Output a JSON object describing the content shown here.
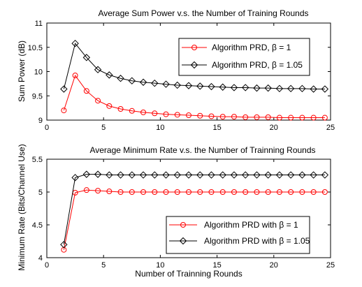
{
  "chart_data": [
    {
      "type": "line",
      "title": "Average Sum Power v.s. the Number of Training Rounds",
      "xlabel": "",
      "ylabel": "Sum Power (dB)",
      "xlim": [
        0,
        25
      ],
      "ylim": [
        9,
        11
      ],
      "xticks": [
        0,
        5,
        10,
        15,
        20,
        25
      ],
      "yticks": [
        9,
        9.5,
        10,
        10.5,
        11
      ],
      "grid": false,
      "legend_position": "top-right",
      "x": [
        1.5,
        2.5,
        3.5,
        4.5,
        5.5,
        6.5,
        7.5,
        8.5,
        9.5,
        10.5,
        11.5,
        12.5,
        13.5,
        14.5,
        15.5,
        16.5,
        17.5,
        18.5,
        19.5,
        20.5,
        21.5,
        22.5,
        23.5,
        24.5
      ],
      "series": [
        {
          "name": "Algorithm PRD, β = 1",
          "color": "#ff0000",
          "marker": "circle",
          "values": [
            9.2,
            9.92,
            9.6,
            9.4,
            9.29,
            9.23,
            9.19,
            9.16,
            9.14,
            9.12,
            9.11,
            9.1,
            9.09,
            9.08,
            9.07,
            9.07,
            9.06,
            9.06,
            9.06,
            9.05,
            9.05,
            9.05,
            9.05,
            9.05
          ]
        },
        {
          "name": "Algorithm PRD, β = 1.05",
          "color": "#000000",
          "marker": "diamond",
          "values": [
            9.64,
            10.58,
            10.29,
            10.04,
            9.93,
            9.86,
            9.81,
            9.78,
            9.76,
            9.74,
            9.72,
            9.71,
            9.7,
            9.69,
            9.68,
            9.67,
            9.67,
            9.66,
            9.66,
            9.65,
            9.65,
            9.65,
            9.64,
            9.64
          ]
        }
      ]
    },
    {
      "type": "line",
      "title": "Average Minimum Rate v.s. the Number of Trainning Rounds",
      "xlabel": "Number of Trainning Rounds",
      "ylabel": "Minimum Rate (Bits/Channel Use)",
      "xlim": [
        0,
        25
      ],
      "ylim": [
        4,
        5.5
      ],
      "xticks": [
        0,
        5,
        10,
        15,
        20,
        25
      ],
      "yticks": [
        4,
        4.5,
        5,
        5.5
      ],
      "grid": false,
      "legend_position": "bottom-right",
      "x": [
        1.5,
        2.5,
        3.5,
        4.5,
        5.5,
        6.5,
        7.5,
        8.5,
        9.5,
        10.5,
        11.5,
        12.5,
        13.5,
        14.5,
        15.5,
        16.5,
        17.5,
        18.5,
        19.5,
        20.5,
        21.5,
        22.5,
        23.5,
        24.5
      ],
      "series": [
        {
          "name": "Algorithm PRD with β = 1",
          "color": "#ff0000",
          "marker": "circle",
          "values": [
            4.12,
            4.99,
            5.03,
            5.02,
            5.01,
            5.0,
            5.0,
            5.0,
            5.0,
            5.0,
            5.0,
            5.0,
            5.0,
            5.0,
            5.0,
            5.0,
            5.0,
            5.0,
            5.0,
            5.0,
            5.0,
            5.0,
            5.0,
            5.0
          ]
        },
        {
          "name": "Algorithm PRD with β = 1.05",
          "color": "#000000",
          "marker": "diamond",
          "values": [
            4.2,
            5.22,
            5.27,
            5.27,
            5.26,
            5.26,
            5.26,
            5.26,
            5.26,
            5.26,
            5.26,
            5.26,
            5.26,
            5.26,
            5.26,
            5.26,
            5.26,
            5.26,
            5.26,
            5.26,
            5.26,
            5.26,
            5.26,
            5.26
          ]
        }
      ]
    }
  ]
}
